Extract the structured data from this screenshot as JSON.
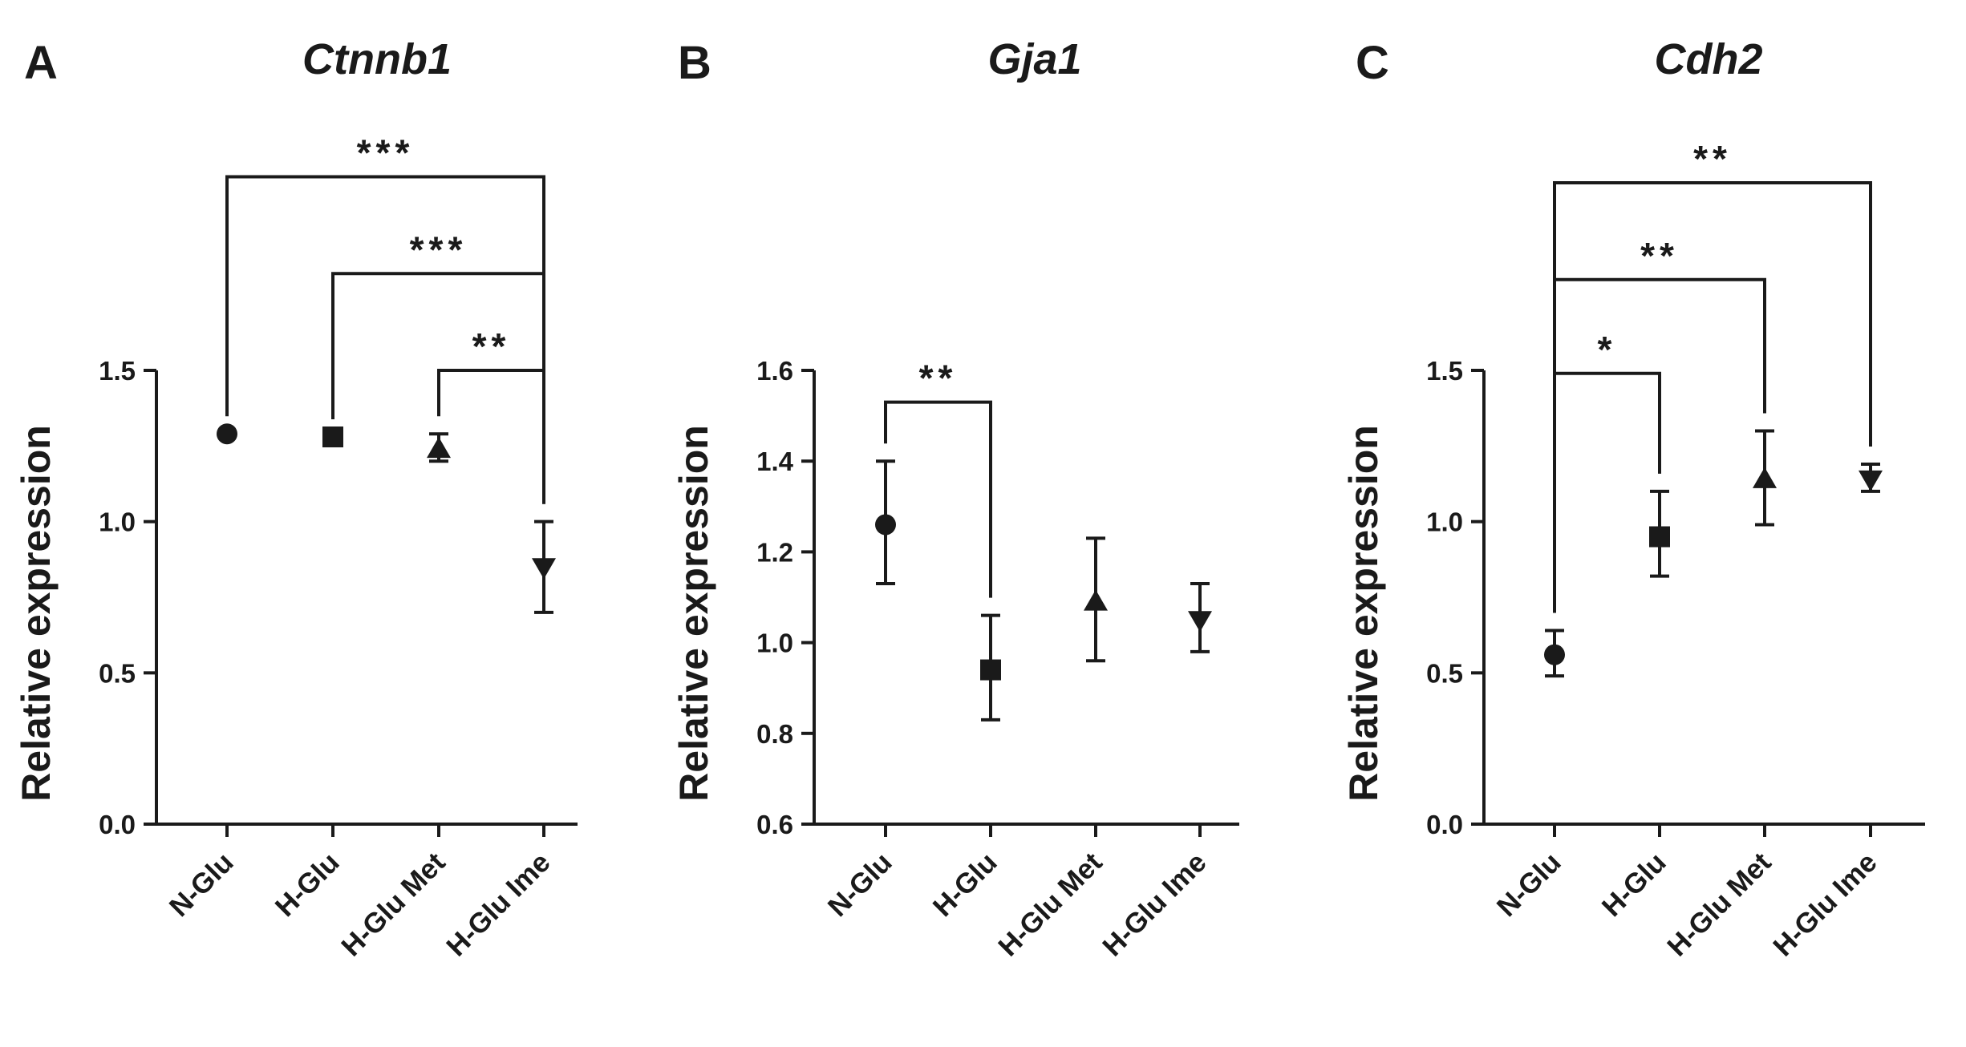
{
  "colors": {
    "ink": "#1a1a1a",
    "background": "#ffffff"
  },
  "chart_data": [
    {
      "type": "scatter",
      "panel_letter": "A",
      "title": "Ctnnb1",
      "ylabel": "Relative expression",
      "xlabel": "",
      "categories": [
        "N-Glu",
        "H-Glu",
        "H-Glu Met",
        "H-Glu Ime"
      ],
      "markers": [
        "circle",
        "square",
        "triangle-up",
        "triangle-down"
      ],
      "ylim": [
        0.0,
        1.5
      ],
      "yticks": [
        0.0,
        0.5,
        1.0,
        1.5
      ],
      "ytick_labels": [
        "0.0",
        "0.5",
        "1.0",
        "1.5"
      ],
      "grid": false,
      "values": [
        1.29,
        1.28,
        1.24,
        0.85
      ],
      "err_low": [
        1.29,
        1.28,
        1.2,
        0.7
      ],
      "err_high": [
        1.29,
        1.28,
        1.29,
        1.0
      ],
      "comparisons": [
        {
          "from": 0,
          "to": 3,
          "label": "***",
          "y": 2.14
        },
        {
          "from": 1,
          "to": 3,
          "label": "***",
          "y": 1.82
        },
        {
          "from": 2,
          "to": 3,
          "label": "**",
          "y": 1.5
        }
      ]
    },
    {
      "type": "scatter",
      "panel_letter": "B",
      "title": "Gja1",
      "ylabel": "Relative expression",
      "xlabel": "",
      "categories": [
        "N-Glu",
        "H-Glu",
        "H-Glu Met",
        "H-Glu Ime"
      ],
      "markers": [
        "circle",
        "square",
        "triangle-up",
        "triangle-down"
      ],
      "ylim": [
        0.6,
        1.6
      ],
      "yticks": [
        0.6,
        0.8,
        1.0,
        1.2,
        1.4,
        1.6
      ],
      "ytick_labels": [
        "0.6",
        "0.8",
        "1.0",
        "1.2",
        "1.4",
        "1.6"
      ],
      "grid": false,
      "values": [
        1.26,
        0.94,
        1.09,
        1.05
      ],
      "err_low": [
        1.13,
        0.83,
        0.96,
        0.98
      ],
      "err_high": [
        1.4,
        1.06,
        1.23,
        1.13
      ],
      "comparisons": [
        {
          "from": 0,
          "to": 1,
          "label": "**",
          "y": 1.53
        }
      ]
    },
    {
      "type": "scatter",
      "panel_letter": "C",
      "title": "Cdh2",
      "ylabel": "Relative expression",
      "xlabel": "",
      "categories": [
        "N-Glu",
        "H-Glu",
        "H-Glu Met",
        "H-Glu Ime"
      ],
      "markers": [
        "circle",
        "square",
        "triangle-up",
        "triangle-down"
      ],
      "ylim": [
        0.0,
        1.5
      ],
      "yticks": [
        0.0,
        0.5,
        1.0,
        1.5
      ],
      "ytick_labels": [
        "0.0",
        "0.5",
        "1.0",
        "1.5"
      ],
      "grid": false,
      "values": [
        0.56,
        0.95,
        1.14,
        1.14
      ],
      "err_low": [
        0.49,
        0.82,
        0.99,
        1.1
      ],
      "err_high": [
        0.64,
        1.1,
        1.3,
        1.19
      ],
      "comparisons": [
        {
          "from": 0,
          "to": 3,
          "label": "**",
          "y": 2.12
        },
        {
          "from": 0,
          "to": 2,
          "label": "**",
          "y": 1.8
        },
        {
          "from": 0,
          "to": 1,
          "label": "*",
          "y": 1.49
        }
      ]
    }
  ]
}
